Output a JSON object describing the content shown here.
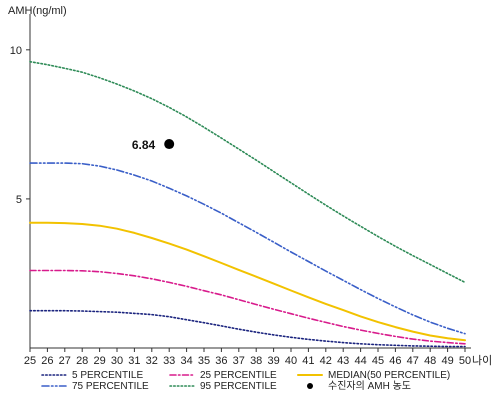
{
  "chart_data": {
    "type": "line",
    "title": "",
    "ylabel": "AMH(ng/ml)",
    "xlabel": "나이",
    "x": [
      25,
      26,
      27,
      28,
      29,
      30,
      31,
      32,
      33,
      34,
      35,
      36,
      37,
      38,
      39,
      40,
      41,
      42,
      43,
      44,
      45,
      46,
      47,
      48,
      49,
      50
    ],
    "ylim": [
      0,
      11
    ],
    "yticks": [
      5,
      10
    ],
    "grid": false,
    "legend_position": "bottom",
    "series": [
      {
        "name": "5 PERCENTILE",
        "color": "#1a237e",
        "dash": "dot",
        "values": [
          1.25,
          1.25,
          1.25,
          1.24,
          1.22,
          1.2,
          1.16,
          1.12,
          1.05,
          0.95,
          0.85,
          0.74,
          0.63,
          0.53,
          0.44,
          0.36,
          0.29,
          0.23,
          0.18,
          0.14,
          0.11,
          0.09,
          0.07,
          0.06,
          0.05,
          0.05
        ]
      },
      {
        "name": "25 PERCENTILE",
        "color": "#d81b8c",
        "dash": "dashdot",
        "values": [
          2.6,
          2.6,
          2.6,
          2.59,
          2.56,
          2.5,
          2.42,
          2.32,
          2.2,
          2.07,
          1.92,
          1.78,
          1.62,
          1.46,
          1.3,
          1.15,
          1.0,
          0.86,
          0.72,
          0.6,
          0.49,
          0.39,
          0.3,
          0.23,
          0.18,
          0.14
        ]
      },
      {
        "name": "MEDIAN(50 PERCENTILE)",
        "color": "#f2c200",
        "dash": "solid",
        "values": [
          4.2,
          4.2,
          4.19,
          4.16,
          4.1,
          4.0,
          3.86,
          3.69,
          3.5,
          3.3,
          3.08,
          2.85,
          2.62,
          2.39,
          2.16,
          1.93,
          1.7,
          1.48,
          1.27,
          1.06,
          0.87,
          0.7,
          0.55,
          0.42,
          0.33,
          0.26
        ]
      },
      {
        "name": "75 PERCENTILE",
        "color": "#3a5fc8",
        "dash": "dashdotdot",
        "values": [
          6.2,
          6.2,
          6.2,
          6.18,
          6.1,
          5.97,
          5.8,
          5.6,
          5.36,
          5.1,
          4.82,
          4.52,
          4.2,
          3.88,
          3.55,
          3.22,
          2.9,
          2.58,
          2.27,
          1.96,
          1.66,
          1.38,
          1.11,
          0.87,
          0.66,
          0.48
        ]
      },
      {
        "name": "95 PERCENTILE",
        "color": "#2e8b57",
        "dash": "dot",
        "values": [
          9.6,
          9.5,
          9.38,
          9.25,
          9.06,
          8.85,
          8.62,
          8.36,
          8.07,
          7.75,
          7.4,
          7.04,
          6.67,
          6.3,
          5.92,
          5.54,
          5.16,
          4.79,
          4.43,
          4.08,
          3.74,
          3.41,
          3.1,
          2.8,
          2.5,
          2.2
        ]
      }
    ],
    "point": {
      "name": "수진자의 AMH 농도",
      "x": 33,
      "y": 6.84,
      "label": "6.84"
    }
  }
}
